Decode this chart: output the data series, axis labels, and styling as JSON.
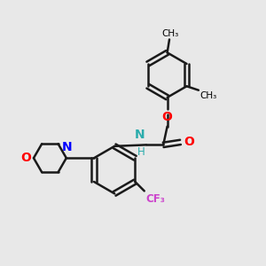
{
  "background_color": "#e8e8e8",
  "bond_color": "#1a1a1a",
  "bond_width": 1.8,
  "figsize": [
    3.0,
    3.0
  ],
  "dpi": 100,
  "xlim": [
    0,
    10
  ],
  "ylim": [
    0,
    10
  ]
}
